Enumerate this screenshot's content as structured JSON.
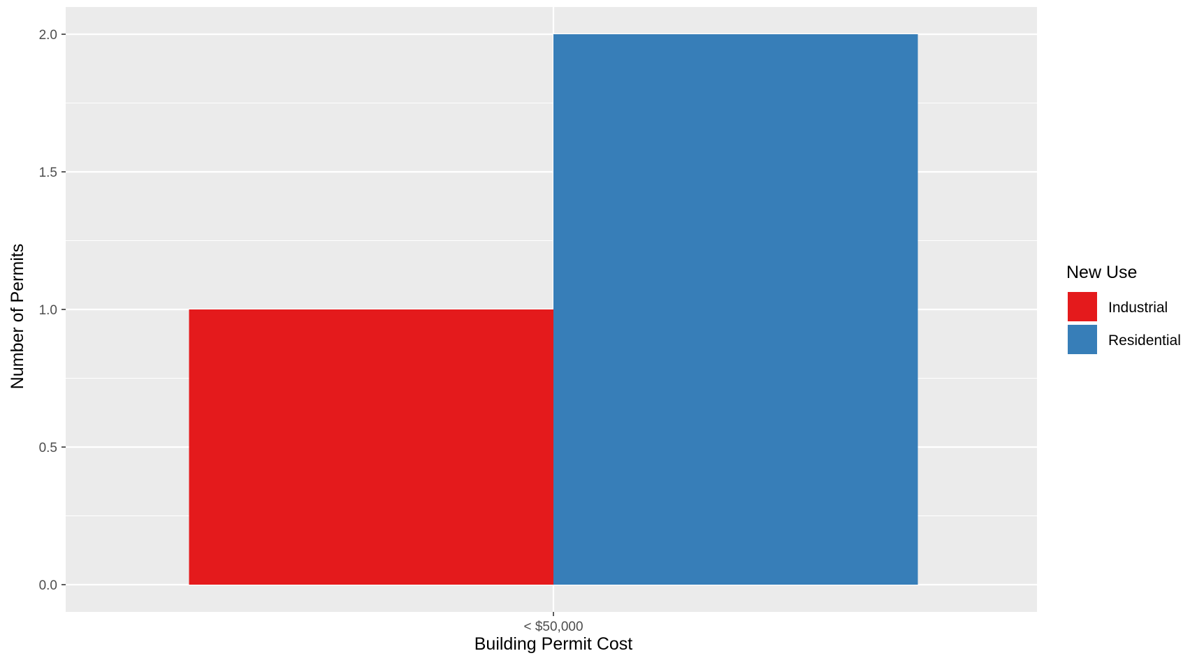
{
  "chart_data": {
    "type": "bar",
    "categories": [
      "< $50,000"
    ],
    "series": [
      {
        "name": "Industrial",
        "values": [
          1
        ],
        "color": "#E41A1C"
      },
      {
        "name": "Residential",
        "values": [
          2
        ],
        "color": "#377EB8"
      }
    ],
    "title": "",
    "xlabel": "Building Permit Cost",
    "ylabel": "Number of Permits",
    "ylim": [
      0,
      2
    ],
    "yticks": [
      "0.0",
      "0.5",
      "1.0",
      "1.5",
      "2.0"
    ],
    "grid": true,
    "legend": {
      "title": "New Use",
      "position": "right"
    },
    "panel_color": "#EBEBEB",
    "gridline_color": "#FFFFFF"
  }
}
